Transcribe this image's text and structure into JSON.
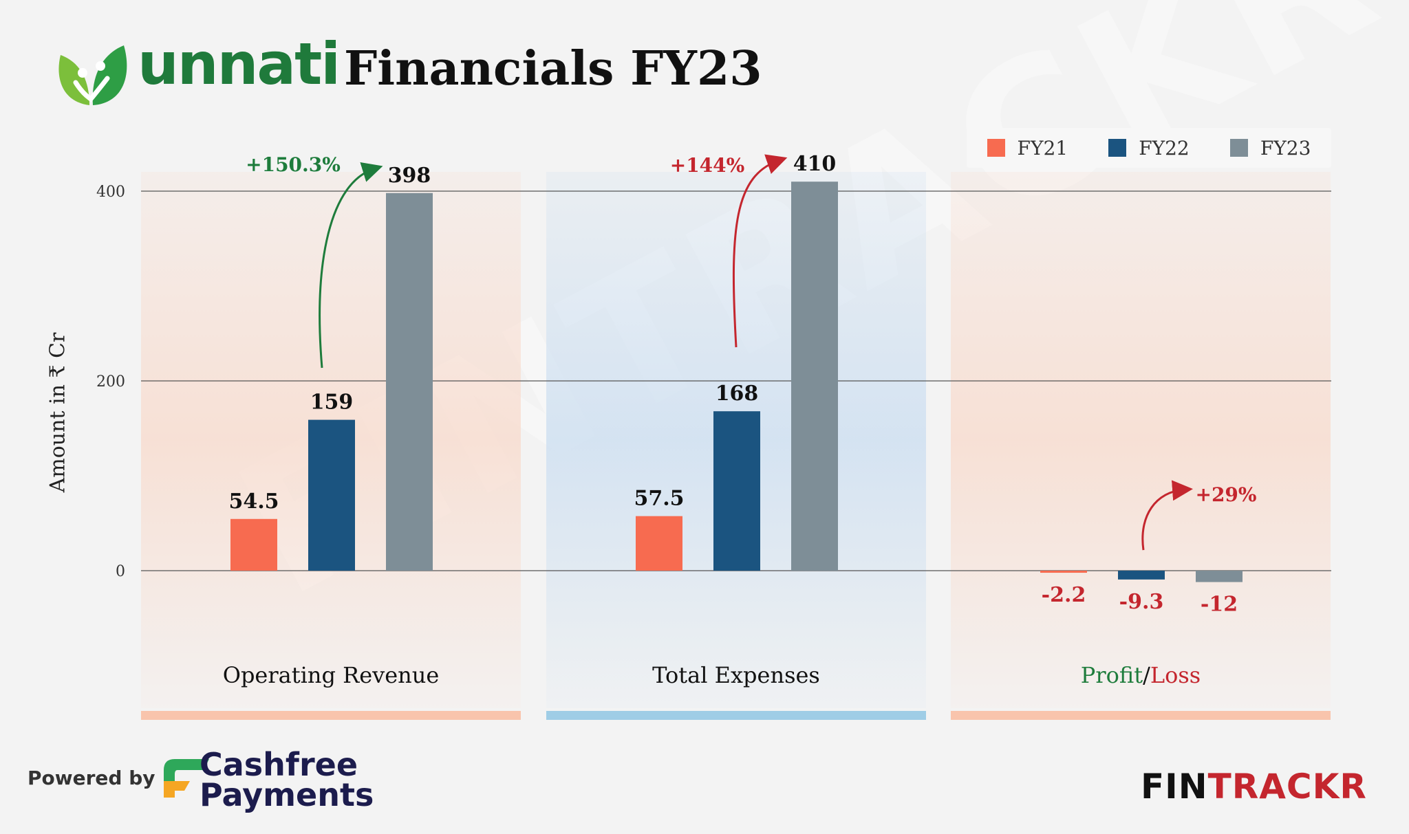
{
  "header": {
    "brand": "unnati",
    "title": "Financials FY23"
  },
  "legend": [
    {
      "label": "FY21",
      "color": "#f76b50"
    },
    {
      "label": "FY22",
      "color": "#1b5480"
    },
    {
      "label": "FY23",
      "color": "#7e8e97"
    }
  ],
  "chart_data": {
    "type": "bar",
    "title": "Financials FY23",
    "ylabel": "Amount in ₹ Cr",
    "xlabel": "",
    "ylim": [
      -120,
      460
    ],
    "yticks": [
      0,
      200,
      400
    ],
    "grid": true,
    "legend_position": "top-right",
    "categories": [
      "Operating Revenue",
      "Total Expenses",
      "Profit/Loss"
    ],
    "category_labels": [
      {
        "parts": [
          {
            "text": "Operating Revenue",
            "color": "#111111"
          }
        ]
      },
      {
        "parts": [
          {
            "text": "Total Expenses",
            "color": "#111111"
          }
        ]
      },
      {
        "parts": [
          {
            "text": "Profit",
            "color": "#1e7c3c"
          },
          {
            "text": "/",
            "color": "#111111"
          },
          {
            "text": "Loss",
            "color": "#c4262e"
          }
        ]
      }
    ],
    "series": [
      {
        "name": "FY21",
        "color": "#f76b50",
        "values": [
          54.5,
          57.5,
          -2.2
        ],
        "labels": [
          "54.5",
          "57.5",
          "-2.2"
        ]
      },
      {
        "name": "FY22",
        "color": "#1b5480",
        "values": [
          159,
          168,
          -9.3
        ],
        "labels": [
          "159",
          "168",
          "-9.3"
        ]
      },
      {
        "name": "FY23",
        "color": "#7e8e97",
        "values": [
          398,
          410,
          -12
        ],
        "labels": [
          "398",
          "410",
          "-12"
        ]
      }
    ],
    "annotations": [
      {
        "text": "+150.3%",
        "category": 0,
        "color": "#1e7c3c"
      },
      {
        "text": "+144%",
        "category": 1,
        "color": "#c4262e"
      },
      {
        "text": "+29%",
        "category": 2,
        "color": "#c4262e"
      }
    ],
    "panel_colors": [
      "#f8ddd0",
      "#cfe0f1",
      "#f8ddd0"
    ],
    "panel_bar_colors": [
      "#f9c4ac",
      "#9fcde6",
      "#f9c4ac"
    ]
  },
  "footer": {
    "powered_by": "Powered by",
    "sponsor_line1": "Cashfree",
    "sponsor_line2": "Payments",
    "watermark": "FINTRACKR",
    "brand_fin": "FIN",
    "brand_trackr": "TRACKR"
  }
}
